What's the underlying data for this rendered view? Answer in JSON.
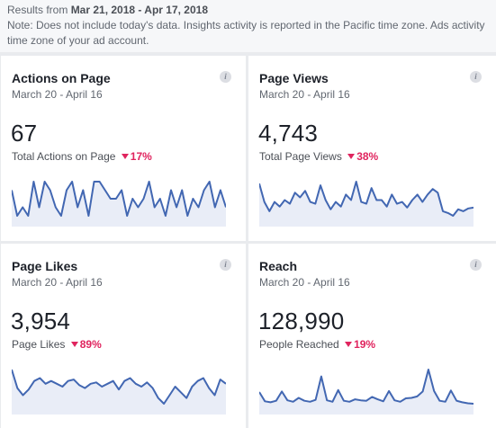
{
  "header": {
    "results_prefix": "Results from ",
    "date_range": "Mar 21, 2018 - Apr 17, 2018",
    "note_line1": "Note: Does not include today's data. Insights activity is reported in the Pacific time zone. Ads activity",
    "note_line2": "time zone of your ad account."
  },
  "info_glyph": "i",
  "colors": {
    "accent": "#4267b2",
    "fill": "#e9edf7",
    "negative": "#e0245e"
  },
  "cards": [
    {
      "title": "Actions on Page",
      "range": "March 20 - April 16",
      "value": "67",
      "label": "Total Actions on Page",
      "delta": "17%",
      "trend": [
        3,
        0,
        1,
        0,
        4,
        1,
        4,
        3,
        1,
        0,
        3,
        4,
        1,
        3,
        0,
        4,
        4,
        3,
        2,
        2,
        3,
        0,
        2,
        1,
        2,
        4,
        1,
        2,
        0,
        3,
        1,
        3,
        0,
        2,
        1,
        3,
        4,
        1,
        3,
        1
      ]
    },
    {
      "title": "Page Views",
      "range": "March 20 - April 16",
      "value": "4,743",
      "label": "Total Page Views",
      "delta": "38%",
      "trend": [
        130,
        110,
        100,
        110,
        105,
        112,
        108,
        120,
        115,
        122,
        110,
        108,
        128,
        112,
        102,
        110,
        105,
        118,
        112,
        132,
        110,
        108,
        125,
        112,
        112,
        105,
        118,
        108,
        110,
        104,
        112,
        118,
        110,
        118,
        124,
        120,
        100,
        98,
        95,
        102,
        100,
        103,
        104
      ]
    },
    {
      "title": "Page Likes",
      "range": "March 20 - April 16",
      "value": "3,954",
      "label": "Page Likes",
      "delta": "89%",
      "trend": [
        148,
        135,
        130,
        134,
        140,
        142,
        138,
        140,
        138,
        136,
        140,
        141,
        137,
        135,
        138,
        139,
        136,
        138,
        140,
        134,
        140,
        142,
        138,
        136,
        139,
        135,
        128,
        124,
        130,
        136,
        132,
        128,
        136,
        140,
        142,
        135,
        130,
        141,
        138
      ]
    },
    {
      "title": "Reach",
      "range": "March 20 - April 16",
      "value": "128,990",
      "label": "People Reached",
      "delta": "19%",
      "trend": [
        4400,
        2500,
        2300,
        2600,
        4500,
        2700,
        2400,
        3200,
        2600,
        2400,
        2800,
        7600,
        2700,
        2400,
        4800,
        2600,
        2400,
        2900,
        2700,
        2600,
        3400,
        2900,
        2500,
        4600,
        2700,
        2400,
        3100,
        3200,
        3500,
        4500,
        9000,
        4600,
        2600,
        2400,
        4700,
        2600,
        2300,
        2100,
        2000
      ]
    }
  ]
}
